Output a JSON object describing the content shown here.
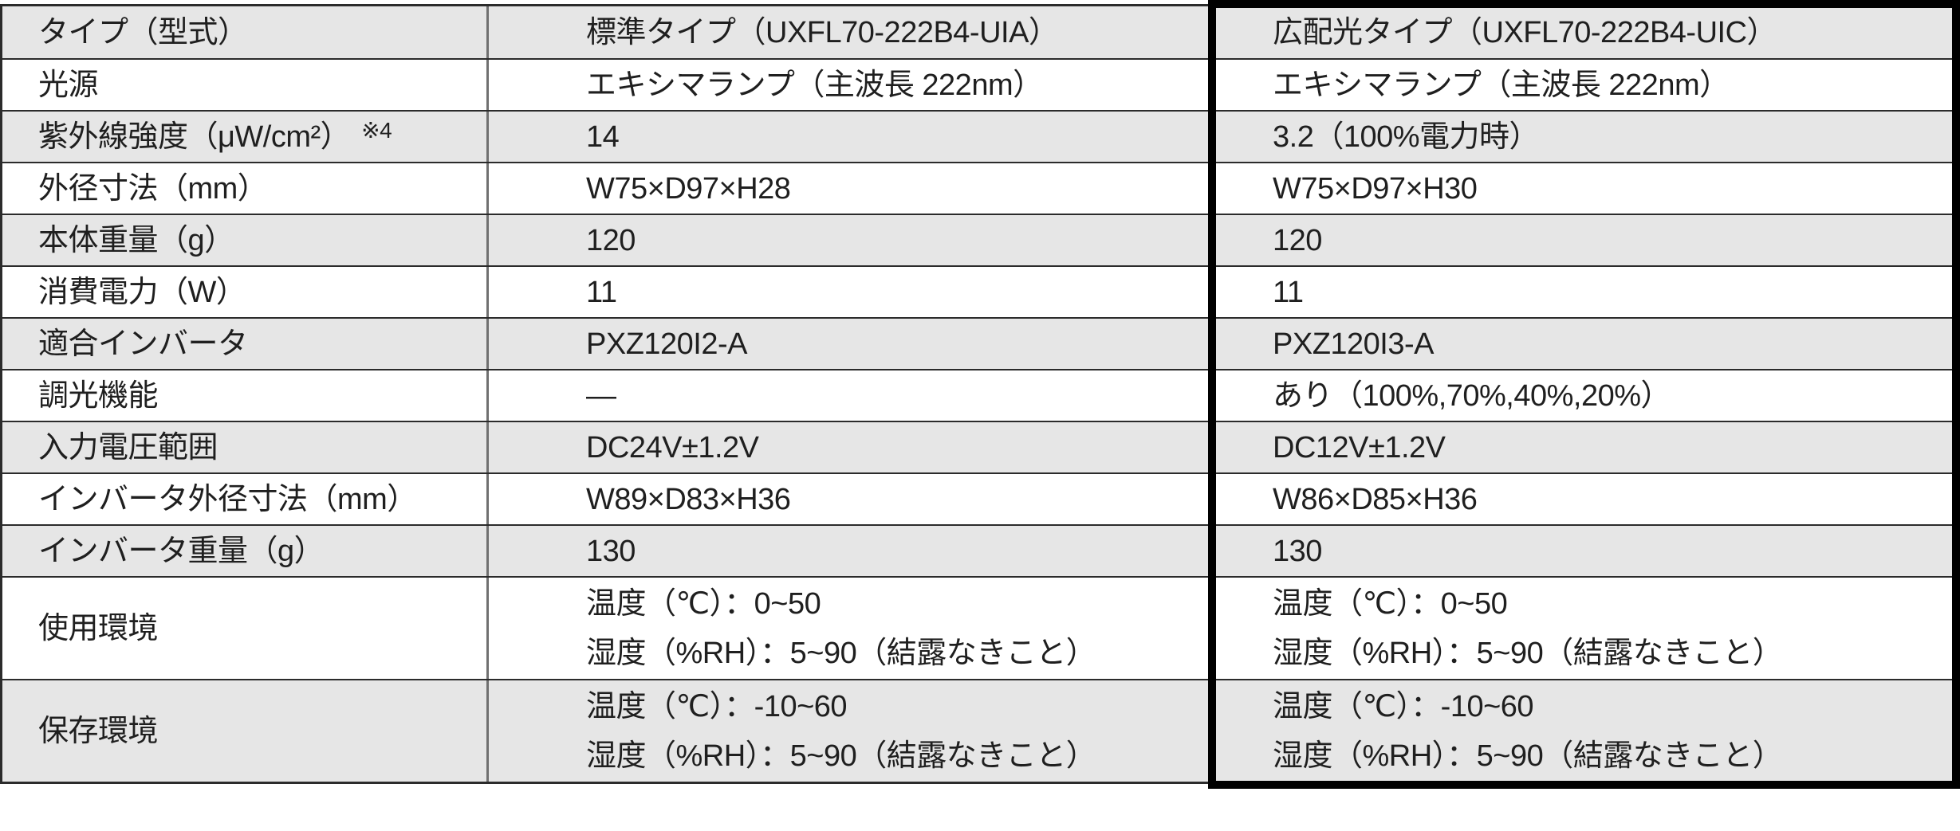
{
  "colors": {
    "row-gray": "#e6e6e6",
    "row-white": "#ffffff",
    "grid-line": "#2b2b2b",
    "col-divider": "#707070",
    "highlight-frame": "#000000",
    "text": "#1f1f1f"
  },
  "table": {
    "rows": [
      {
        "label": "タイプ（型式）",
        "standard": "標準タイプ（UXFL70-222B4-UIA）",
        "wide": "広配光タイプ（UXFL70-222B4-UIC）"
      },
      {
        "label": "光源",
        "standard": "エキシマランプ（主波長 222nm）",
        "wide": "エキシマランプ（主波長 222nm）"
      },
      {
        "label": "紫外線強度（μW/cm²）",
        "note": "※4",
        "standard": "14",
        "wide": "3.2（100%電力時）"
      },
      {
        "label": "外径寸法（mm）",
        "standard": "W75×D97×H28",
        "wide": "W75×D97×H30"
      },
      {
        "label": "本体重量（g）",
        "standard": "120",
        "wide": "120"
      },
      {
        "label": "消費電力（W）",
        "standard": "11",
        "wide": "11"
      },
      {
        "label": "適合インバータ",
        "standard": "PXZ120I2-A",
        "wide": "PXZ120I3-A"
      },
      {
        "label": "調光機能",
        "standard": "—",
        "wide": "あり（100%,70%,40%,20%）"
      },
      {
        "label": "入力電圧範囲",
        "standard": "DC24V±1.2V",
        "wide": "DC12V±1.2V"
      },
      {
        "label": "インバータ外径寸法（mm）",
        "standard": "W89×D83×H36",
        "wide": "W86×D85×H36"
      },
      {
        "label": "インバータ重量（g）",
        "standard": "130",
        "wide": "130"
      },
      {
        "label": "使用環境",
        "standard": "温度（℃）：0~50\n湿度（%RH）：5~90（結露なきこと）",
        "wide": "温度（℃）：0~50\n湿度（%RH）：5~90（結露なきこと）"
      },
      {
        "label": "保存環境",
        "standard": "温度（℃）：-10~60\n湿度（%RH）：5~90（結露なきこと）",
        "wide": "温度（℃）：-10~60\n湿度（%RH）：5~90（結露なきこと）"
      }
    ]
  }
}
